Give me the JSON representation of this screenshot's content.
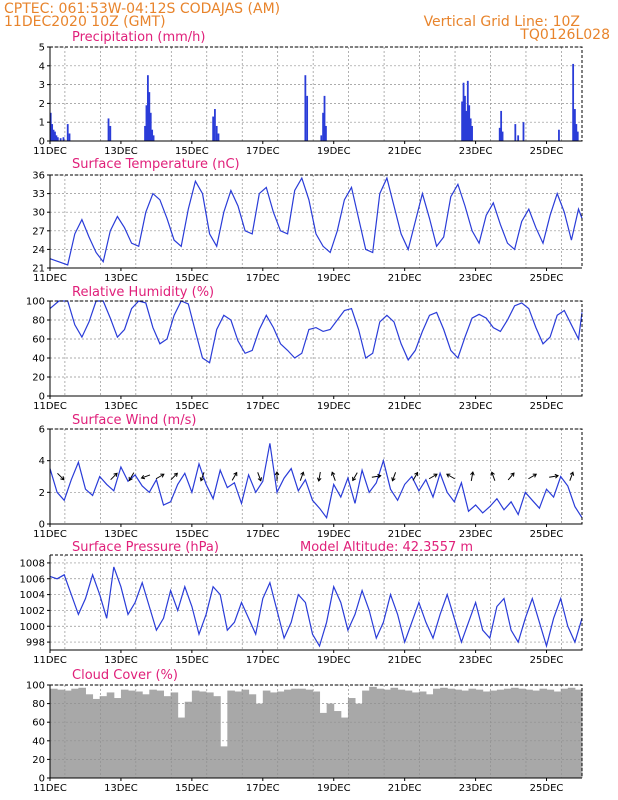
{
  "header": {
    "line1_left": "CPTEC:   061:53W-04:12S   CODAJAS (AM)",
    "line2_left": "11DEC2020 10Z (GMT)",
    "line2_right": "Vertical Grid Line: 10Z",
    "line3_right": "TQ0126L028"
  },
  "colors": {
    "header": "#e8842c",
    "panel_title": "#e0207a",
    "series": "#2a3cd8",
    "cloud": "#a8a8a8",
    "grid": "#909090"
  },
  "x_axis": {
    "start": "11DEC 00Z",
    "end": "26DEC 00Z",
    "tick_labels": [
      "11DEC",
      "13DEC",
      "15DEC",
      "17DEC",
      "19DEC",
      "21DEC",
      "23DEC",
      "25DEC"
    ],
    "tick_days": [
      11,
      13,
      15,
      17,
      19,
      21,
      23,
      25
    ],
    "grid_days": [
      11.42,
      12.42,
      13.42,
      14.42,
      15.42,
      16.42,
      17.42,
      18.42,
      19.42,
      20.42,
      21.42,
      22.42,
      23.42,
      24.42,
      25.42
    ]
  },
  "chart_data": [
    {
      "type": "bar",
      "title": "Precipitation (mm/h)",
      "ylim": [
        0,
        5
      ],
      "yticks": [
        0,
        1,
        2,
        3,
        4,
        5
      ],
      "x_units": "day of December",
      "x": [
        11.02,
        11.06,
        11.1,
        11.14,
        11.18,
        11.22,
        11.3,
        11.38,
        11.5,
        11.55,
        12.65,
        12.7,
        13.68,
        13.72,
        13.76,
        13.8,
        13.84,
        13.88,
        13.92,
        15.6,
        15.65,
        15.7,
        15.75,
        18.2,
        18.25,
        18.65,
        18.7,
        18.74,
        18.78,
        22.62,
        22.66,
        22.7,
        22.74,
        22.78,
        22.82,
        22.86,
        22.9,
        23.68,
        23.72,
        23.76,
        24.12,
        24.2,
        24.35,
        25.35,
        25.75,
        25.8,
        25.84,
        25.88
      ],
      "values": [
        1.5,
        0.9,
        0.6,
        0.5,
        0.3,
        0.2,
        0.15,
        0.2,
        0.9,
        0.4,
        1.2,
        0.8,
        0.8,
        1.9,
        3.5,
        2.6,
        1.5,
        0.6,
        0.3,
        1.3,
        1.7,
        0.8,
        0.4,
        3.5,
        2.4,
        0.3,
        1.5,
        2.4,
        0.8,
        2.1,
        3.1,
        2.4,
        1.6,
        3.2,
        1.9,
        1.2,
        0.8,
        0.7,
        1.6,
        0.5,
        0.9,
        0.3,
        1.0,
        0.6,
        4.1,
        1.7,
        0.9,
        0.5
      ]
    },
    {
      "type": "line",
      "title": "Surface Temperature (nC)",
      "ylim": [
        21,
        36
      ],
      "yticks": [
        21,
        24,
        27,
        30,
        33,
        36
      ],
      "x_units": "day of December",
      "x": [
        11.0,
        11.25,
        11.5,
        11.7,
        11.9,
        12.1,
        12.3,
        12.5,
        12.7,
        12.9,
        13.1,
        13.3,
        13.5,
        13.7,
        13.9,
        14.1,
        14.3,
        14.5,
        14.7,
        14.9,
        15.1,
        15.3,
        15.5,
        15.7,
        15.9,
        16.1,
        16.3,
        16.5,
        16.7,
        16.9,
        17.1,
        17.3,
        17.5,
        17.7,
        17.9,
        18.1,
        18.3,
        18.5,
        18.7,
        18.9,
        19.1,
        19.3,
        19.5,
        19.7,
        19.9,
        20.1,
        20.3,
        20.5,
        20.7,
        20.9,
        21.1,
        21.3,
        21.5,
        21.7,
        21.9,
        22.1,
        22.3,
        22.5,
        22.7,
        22.9,
        23.1,
        23.3,
        23.5,
        23.7,
        23.9,
        24.1,
        24.3,
        24.5,
        24.7,
        24.9,
        25.1,
        25.3,
        25.5,
        25.7,
        25.9,
        26.0
      ],
      "values": [
        22.5,
        22.0,
        21.5,
        26.5,
        28.8,
        26.0,
        23.5,
        22.0,
        27.0,
        29.3,
        27.5,
        25.0,
        24.5,
        30.0,
        33.0,
        32.0,
        29.0,
        25.5,
        24.5,
        30.5,
        35.0,
        33.0,
        26.5,
        24.5,
        30.0,
        33.5,
        31.0,
        27.0,
        26.5,
        33.0,
        34.0,
        30.0,
        27.0,
        26.5,
        33.5,
        35.5,
        32.0,
        26.5,
        24.5,
        23.5,
        27.0,
        32.0,
        34.0,
        29.0,
        24.0,
        23.5,
        33.0,
        35.5,
        31.0,
        26.5,
        24.0,
        28.5,
        33.0,
        29.0,
        24.5,
        26.0,
        32.5,
        34.5,
        31.0,
        27.0,
        25.0,
        29.5,
        31.5,
        28.0,
        25.0,
        24.0,
        28.5,
        30.5,
        27.5,
        25.0,
        29.5,
        33.0,
        30.0,
        25.5,
        30.5,
        29.0
      ]
    },
    {
      "type": "line",
      "title": "Relative Humidity (%)",
      "ylim": [
        0,
        100
      ],
      "yticks": [
        0,
        20,
        40,
        60,
        80,
        100
      ],
      "x_units": "day of December",
      "x": [
        11.0,
        11.25,
        11.5,
        11.7,
        11.9,
        12.1,
        12.3,
        12.5,
        12.7,
        12.9,
        13.1,
        13.3,
        13.5,
        13.7,
        13.9,
        14.1,
        14.3,
        14.5,
        14.7,
        14.9,
        15.1,
        15.3,
        15.5,
        15.7,
        15.9,
        16.1,
        16.3,
        16.5,
        16.7,
        16.9,
        17.1,
        17.3,
        17.5,
        17.7,
        17.9,
        18.1,
        18.3,
        18.5,
        18.7,
        18.9,
        19.1,
        19.3,
        19.5,
        19.7,
        19.9,
        20.1,
        20.3,
        20.5,
        20.7,
        20.9,
        21.1,
        21.3,
        21.5,
        21.7,
        21.9,
        22.1,
        22.3,
        22.5,
        22.7,
        22.9,
        23.1,
        23.3,
        23.5,
        23.7,
        23.9,
        24.1,
        24.3,
        24.5,
        24.7,
        24.9,
        25.1,
        25.3,
        25.5,
        25.7,
        25.9,
        26.0
      ],
      "values": [
        92,
        100,
        100,
        75,
        62,
        78,
        100,
        100,
        82,
        62,
        70,
        92,
        100,
        98,
        72,
        55,
        60,
        85,
        100,
        97,
        68,
        40,
        35,
        70,
        85,
        80,
        58,
        45,
        48,
        70,
        85,
        72,
        55,
        48,
        40,
        45,
        70,
        72,
        68,
        70,
        80,
        90,
        92,
        70,
        40,
        45,
        78,
        85,
        78,
        55,
        38,
        48,
        68,
        85,
        88,
        70,
        48,
        40,
        62,
        82,
        86,
        82,
        72,
        68,
        80,
        95,
        98,
        92,
        72,
        55,
        62,
        85,
        90,
        75,
        60,
        88
      ]
    },
    {
      "type": "line",
      "title": "Surface Wind (m/s)",
      "ylim": [
        0,
        6
      ],
      "yticks": [
        0,
        2,
        4,
        6
      ],
      "x_units": "day of December",
      "x": [
        11.0,
        11.2,
        11.4,
        11.6,
        11.8,
        12.0,
        12.2,
        12.4,
        12.6,
        12.8,
        13.0,
        13.2,
        13.4,
        13.6,
        13.8,
        14.0,
        14.2,
        14.4,
        14.6,
        14.8,
        15.0,
        15.2,
        15.4,
        15.6,
        15.8,
        16.0,
        16.2,
        16.4,
        16.6,
        16.8,
        17.0,
        17.2,
        17.4,
        17.6,
        17.8,
        18.0,
        18.2,
        18.4,
        18.6,
        18.8,
        19.0,
        19.2,
        19.4,
        19.6,
        19.8,
        20.0,
        20.2,
        20.4,
        20.6,
        20.8,
        21.0,
        21.2,
        21.4,
        21.6,
        21.8,
        22.0,
        22.2,
        22.4,
        22.6,
        22.8,
        23.0,
        23.2,
        23.4,
        23.6,
        23.8,
        24.0,
        24.2,
        24.4,
        24.6,
        24.8,
        25.0,
        25.2,
        25.4,
        25.6,
        25.8,
        26.0
      ],
      "values": [
        3.5,
        2.0,
        1.5,
        2.8,
        3.9,
        2.2,
        1.8,
        3.0,
        2.5,
        2.1,
        3.6,
        2.7,
        3.1,
        2.4,
        2.0,
        2.8,
        1.2,
        1.4,
        2.5,
        3.2,
        2.0,
        3.8,
        2.5,
        1.6,
        3.4,
        2.3,
        2.6,
        1.3,
        3.1,
        2.0,
        2.7,
        5.1,
        2.0,
        2.9,
        3.5,
        2.1,
        2.8,
        1.5,
        1.0,
        0.4,
        2.5,
        1.7,
        2.9,
        1.3,
        3.4,
        2.0,
        2.6,
        4.0,
        2.2,
        1.5,
        2.5,
        3.0,
        2.1,
        2.8,
        1.7,
        3.2,
        2.0,
        1.4,
        2.6,
        0.8,
        1.2,
        0.7,
        1.1,
        1.6,
        0.9,
        1.4,
        0.6,
        2.0,
        1.5,
        1.0,
        2.2,
        1.7,
        3.0,
        2.4,
        1.1,
        0.4
      ],
      "vectors": [
        {
          "x": 11.3,
          "dir": 135
        },
        {
          "x": 12.8,
          "dir": 45
        },
        {
          "x": 13.3,
          "dir": 210
        },
        {
          "x": 13.7,
          "dir": 250
        },
        {
          "x": 14.1,
          "dir": 60
        },
        {
          "x": 14.5,
          "dir": 45
        },
        {
          "x": 15.3,
          "dir": 200
        },
        {
          "x": 16.2,
          "dir": 30
        },
        {
          "x": 16.9,
          "dir": 160
        },
        {
          "x": 17.4,
          "dir": 0
        },
        {
          "x": 18.1,
          "dir": 20
        },
        {
          "x": 18.6,
          "dir": 190
        },
        {
          "x": 19.0,
          "dir": 340
        },
        {
          "x": 19.6,
          "dir": 210
        },
        {
          "x": 20.2,
          "dir": 80
        },
        {
          "x": 20.7,
          "dir": 200
        },
        {
          "x": 21.3,
          "dir": 30
        },
        {
          "x": 21.8,
          "dir": 60
        },
        {
          "x": 22.3,
          "dir": 300
        },
        {
          "x": 22.9,
          "dir": 10
        },
        {
          "x": 23.5,
          "dir": 340
        },
        {
          "x": 24.0,
          "dir": 40
        },
        {
          "x": 24.6,
          "dir": 60
        },
        {
          "x": 25.2,
          "dir": 80
        },
        {
          "x": 25.7,
          "dir": 20
        }
      ]
    },
    {
      "type": "line",
      "title": "Surface Pressure (hPa)",
      "annotation": "Model Altitude: 42.3557 m",
      "ylim": [
        997,
        1009
      ],
      "yticks": [
        998,
        1000,
        1002,
        1004,
        1006,
        1008
      ],
      "x_units": "day of December",
      "x": [
        11.0,
        11.2,
        11.4,
        11.6,
        11.8,
        12.0,
        12.2,
        12.4,
        12.6,
        12.8,
        13.0,
        13.2,
        13.4,
        13.6,
        13.8,
        14.0,
        14.2,
        14.4,
        14.6,
        14.8,
        15.0,
        15.2,
        15.4,
        15.6,
        15.8,
        16.0,
        16.2,
        16.4,
        16.6,
        16.8,
        17.0,
        17.2,
        17.4,
        17.6,
        17.8,
        18.0,
        18.2,
        18.4,
        18.6,
        18.8,
        19.0,
        19.2,
        19.4,
        19.6,
        19.8,
        20.0,
        20.2,
        20.4,
        20.6,
        20.8,
        21.0,
        21.2,
        21.4,
        21.6,
        21.8,
        22.0,
        22.2,
        22.4,
        22.6,
        22.8,
        23.0,
        23.2,
        23.4,
        23.6,
        23.8,
        24.0,
        24.2,
        24.4,
        24.6,
        24.8,
        25.0,
        25.2,
        25.4,
        25.6,
        25.8,
        26.0
      ],
      "values": [
        1006.3,
        1006.0,
        1006.5,
        1004.0,
        1001.5,
        1003.5,
        1006.5,
        1004.0,
        1001.0,
        1007.5,
        1005.0,
        1001.5,
        1003.0,
        1005.5,
        1002.5,
        999.5,
        1001.0,
        1004.5,
        1002.0,
        1005.0,
        1002.5,
        999.0,
        1001.5,
        1005.0,
        1004.0,
        999.5,
        1000.5,
        1003.0,
        1001.0,
        999.0,
        1003.5,
        1005.5,
        1002.0,
        998.5,
        1000.5,
        1004.0,
        1003.0,
        999.0,
        997.5,
        1000.5,
        1005.0,
        1003.0,
        999.5,
        1001.5,
        1004.5,
        1002.0,
        998.5,
        1000.5,
        1004.0,
        1001.5,
        998.0,
        1000.5,
        1003.0,
        1000.5,
        998.5,
        1001.5,
        1004.0,
        1001.0,
        998.0,
        1000.5,
        1003.0,
        999.5,
        998.5,
        1002.5,
        1003.5,
        999.5,
        998.0,
        1001.0,
        1003.5,
        1000.5,
        997.5,
        1001.0,
        1003.5,
        1000.0,
        998.0,
        1001.0
      ]
    },
    {
      "type": "bar",
      "title": "Cloud Cover (%)",
      "ylim": [
        0,
        100
      ],
      "yticks": [
        0,
        20,
        40,
        60,
        80,
        100
      ],
      "x_units": "day of December",
      "x": [
        11.0,
        11.2,
        11.4,
        11.6,
        11.8,
        12.0,
        12.2,
        12.4,
        12.6,
        12.8,
        13.0,
        13.2,
        13.4,
        13.6,
        13.8,
        14.0,
        14.2,
        14.4,
        14.6,
        14.8,
        15.0,
        15.2,
        15.4,
        15.6,
        15.8,
        16.0,
        16.2,
        16.4,
        16.6,
        16.8,
        17.0,
        17.2,
        17.4,
        17.6,
        17.8,
        18.0,
        18.2,
        18.4,
        18.6,
        18.8,
        19.0,
        19.2,
        19.4,
        19.6,
        19.8,
        20.0,
        20.2,
        20.4,
        20.6,
        20.8,
        21.0,
        21.2,
        21.4,
        21.6,
        21.8,
        22.0,
        22.2,
        22.4,
        22.6,
        22.8,
        23.0,
        23.2,
        23.4,
        23.6,
        23.8,
        24.0,
        24.2,
        24.4,
        24.6,
        24.8,
        25.0,
        25.2,
        25.4,
        25.6,
        25.8
      ],
      "values": [
        96,
        95,
        94,
        96,
        97,
        90,
        85,
        88,
        92,
        86,
        95,
        94,
        93,
        90,
        95,
        94,
        88,
        92,
        65,
        82,
        94,
        93,
        92,
        88,
        34,
        94,
        93,
        95,
        90,
        80,
        94,
        92,
        93,
        95,
        96,
        96,
        95,
        93,
        70,
        80,
        72,
        65,
        86,
        80,
        94,
        98,
        96,
        95,
        97,
        95,
        94,
        92,
        93,
        90,
        96,
        97,
        96,
        95,
        94,
        96,
        95,
        93,
        94,
        95,
        96,
        97,
        96,
        95,
        94,
        96,
        95,
        93,
        96,
        97,
        95
      ]
    }
  ]
}
